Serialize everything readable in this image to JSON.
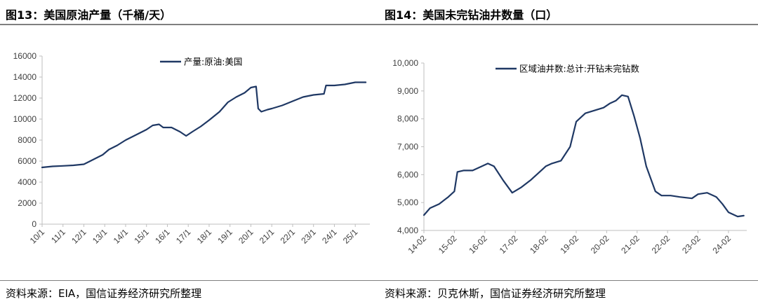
{
  "left": {
    "title": "图13：美国原油产量（千桶/天）",
    "source": "资料来源：EIA，国信证券经济研究所整理"
  },
  "right": {
    "title": "图14：美国未完钻油井数量（口）",
    "source": "资料来源：贝克休斯，国信证券经济研究所整理"
  },
  "colors": {
    "line": "#1f3864",
    "text": "#000000",
    "rule": "#7f7f7f",
    "tick": "#404040"
  },
  "chart_data": [
    {
      "type": "line",
      "title": "",
      "xlabel": "",
      "ylabel": "",
      "ylim": [
        0,
        16000
      ],
      "yticks": [
        "0",
        "2000",
        "4000",
        "6000",
        "8000",
        "10000",
        "12000",
        "14000",
        "16000"
      ],
      "xticks": [
        "10/1",
        "11/1",
        "12/1",
        "13/1",
        "14/1",
        "15/1",
        "16/1",
        "17/1",
        "18/1",
        "19/1",
        "20/1",
        "21/1",
        "22/1",
        "23/1",
        "24/1",
        "25/1"
      ],
      "xlim": [
        2010.0,
        2025.7
      ],
      "grid": false,
      "legend": "top-center",
      "series": [
        {
          "name": "产量:原油:美国",
          "x": [
            2010.0,
            2010.5,
            2011.0,
            2011.5,
            2012.0,
            2012.5,
            2012.9,
            2013.2,
            2013.6,
            2014.0,
            2014.5,
            2015.0,
            2015.3,
            2015.6,
            2015.8,
            2016.2,
            2016.6,
            2016.9,
            2017.2,
            2017.6,
            2018.0,
            2018.5,
            2018.9,
            2019.3,
            2019.7,
            2020.0,
            2020.25,
            2020.35,
            2020.5,
            2020.8,
            2021.0,
            2021.5,
            2022.0,
            2022.5,
            2023.0,
            2023.5,
            2023.6,
            2024.0,
            2024.5,
            2025.0,
            2025.5
          ],
          "y": [
            5400,
            5500,
            5550,
            5600,
            5700,
            6200,
            6600,
            7100,
            7500,
            8000,
            8500,
            9000,
            9400,
            9500,
            9200,
            9200,
            8800,
            8400,
            8800,
            9300,
            9900,
            10700,
            11600,
            12100,
            12500,
            13000,
            13100,
            11000,
            10700,
            10900,
            11000,
            11300,
            11700,
            12100,
            12300,
            12400,
            13200,
            13200,
            13300,
            13500,
            13500
          ]
        }
      ]
    },
    {
      "type": "line",
      "title": "",
      "xlabel": "",
      "ylabel": "",
      "ylim": [
        4000,
        10000
      ],
      "yticks": [
        "4,000",
        "5,000",
        "6,000",
        "7,000",
        "8,000",
        "9,000",
        "10,000"
      ],
      "xticks": [
        "14-02",
        "15-02",
        "16-02",
        "17-02",
        "18-02",
        "19-02",
        "20-02",
        "21-02",
        "22-02",
        "23-02",
        "24-02"
      ],
      "xlim": [
        2014.0,
        2024.6
      ],
      "grid": false,
      "legend": "top-center",
      "series": [
        {
          "name": "区域油井数:总计:开钻未完钻数",
          "x": [
            2014.0,
            2014.2,
            2014.5,
            2014.8,
            2015.0,
            2015.1,
            2015.3,
            2015.6,
            2015.9,
            2016.1,
            2016.3,
            2016.6,
            2016.9,
            2017.2,
            2017.5,
            2017.8,
            2018.0,
            2018.2,
            2018.5,
            2018.8,
            2019.0,
            2019.3,
            2019.6,
            2019.9,
            2020.1,
            2020.3,
            2020.5,
            2020.7,
            2020.9,
            2021.1,
            2021.3,
            2021.6,
            2021.8,
            2022.1,
            2022.4,
            2022.8,
            2023.0,
            2023.3,
            2023.6,
            2023.8,
            2024.0,
            2024.3,
            2024.5
          ],
          "y": [
            4550,
            4800,
            4950,
            5200,
            5400,
            6100,
            6150,
            6150,
            6300,
            6400,
            6300,
            5800,
            5350,
            5550,
            5800,
            6100,
            6300,
            6400,
            6500,
            7000,
            7900,
            8200,
            8300,
            8400,
            8550,
            8650,
            8850,
            8800,
            8100,
            7300,
            6300,
            5400,
            5250,
            5250,
            5200,
            5150,
            5300,
            5350,
            5200,
            4950,
            4650,
            4500,
            4530
          ]
        }
      ]
    }
  ]
}
